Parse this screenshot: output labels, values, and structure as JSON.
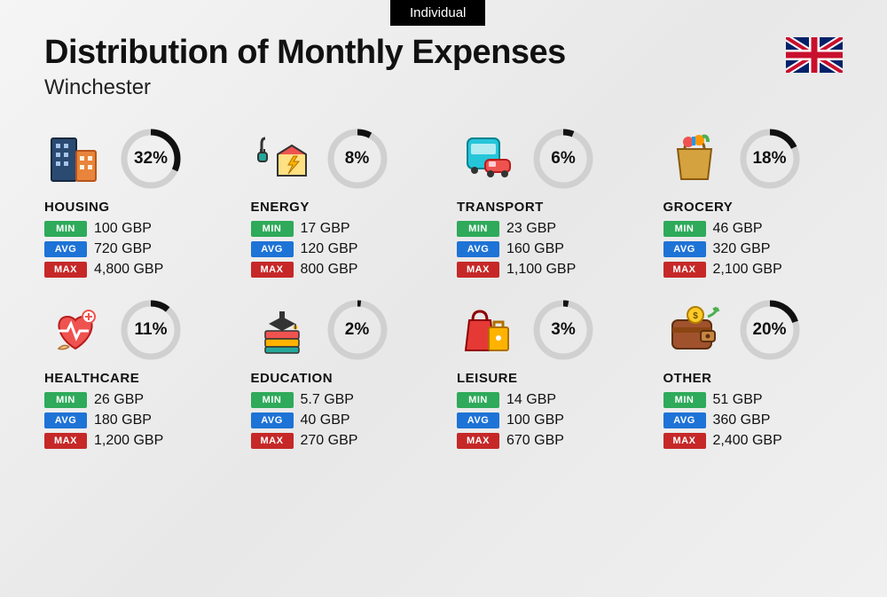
{
  "tab_label": "Individual",
  "title": "Distribution of Monthly Expenses",
  "subtitle": "Winchester",
  "flag": "uk",
  "currency": "GBP",
  "ring": {
    "stroke_bg": "#d0d0d0",
    "stroke_fg": "#111111",
    "stroke_width": 7,
    "radius": 30
  },
  "badges": {
    "min": {
      "label": "MIN",
      "bg": "#2eaa5a"
    },
    "avg": {
      "label": "AVG",
      "bg": "#1e73d6"
    },
    "max": {
      "label": "MAX",
      "bg": "#c62828"
    }
  },
  "categories": [
    {
      "key": "housing",
      "name": "HOUSING",
      "icon": "buildings",
      "percent": 32,
      "min": "100 GBP",
      "avg": "720 GBP",
      "max": "4,800 GBP"
    },
    {
      "key": "energy",
      "name": "ENERGY",
      "icon": "energy",
      "percent": 8,
      "min": "17 GBP",
      "avg": "120 GBP",
      "max": "800 GBP"
    },
    {
      "key": "transport",
      "name": "TRANSPORT",
      "icon": "transport",
      "percent": 6,
      "min": "23 GBP",
      "avg": "160 GBP",
      "max": "1,100 GBP"
    },
    {
      "key": "grocery",
      "name": "GROCERY",
      "icon": "grocery",
      "percent": 18,
      "min": "46 GBP",
      "avg": "320 GBP",
      "max": "2,100 GBP"
    },
    {
      "key": "healthcare",
      "name": "HEALTHCARE",
      "icon": "health",
      "percent": 11,
      "min": "26 GBP",
      "avg": "180 GBP",
      "max": "1,200 GBP"
    },
    {
      "key": "education",
      "name": "EDUCATION",
      "icon": "education",
      "percent": 2,
      "min": "5.7 GBP",
      "avg": "40 GBP",
      "max": "270 GBP"
    },
    {
      "key": "leisure",
      "name": "LEISURE",
      "icon": "leisure",
      "percent": 3,
      "min": "14 GBP",
      "avg": "100 GBP",
      "max": "670 GBP"
    },
    {
      "key": "other",
      "name": "OTHER",
      "icon": "wallet",
      "percent": 20,
      "min": "51 GBP",
      "avg": "360 GBP",
      "max": "2,400 GBP"
    }
  ]
}
